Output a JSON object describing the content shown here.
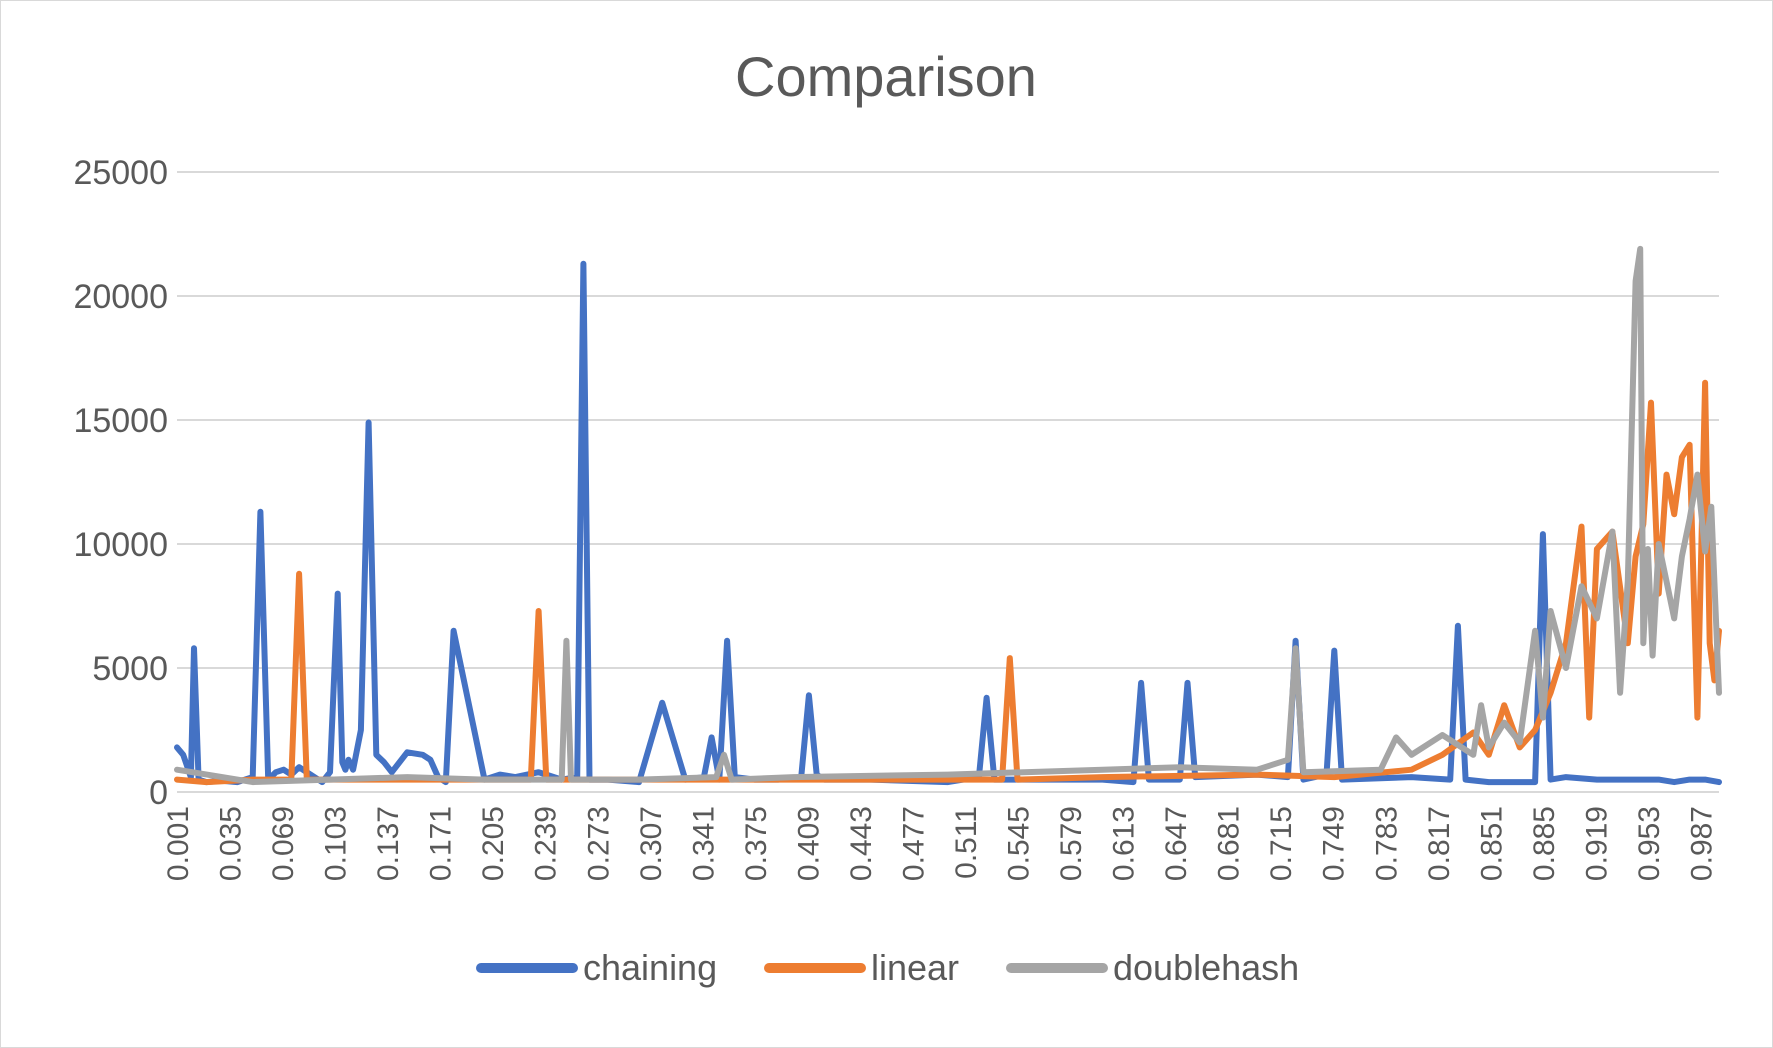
{
  "chart_data": {
    "type": "line",
    "title": "Comparison",
    "xlabel": "",
    "ylabel": "",
    "ylim": [
      0,
      25000
    ],
    "yticks": [
      0,
      5000,
      10000,
      15000,
      20000,
      25000
    ],
    "xlim": [
      0.001,
      0.999
    ],
    "xticks": [
      "0.001",
      "0.035",
      "0.069",
      "0.103",
      "0.137",
      "0.171",
      "0.205",
      "0.239",
      "0.273",
      "0.307",
      "0.341",
      "0.375",
      "0.409",
      "0.443",
      "0.477",
      "0.511",
      "0.545",
      "0.579",
      "0.613",
      "0.647",
      "0.681",
      "0.715",
      "0.749",
      "0.783",
      "0.817",
      "0.851",
      "0.885",
      "0.919",
      "0.953",
      "0.987"
    ],
    "grid": true,
    "legend_position": "bottom",
    "series": [
      {
        "name": "chaining",
        "color": "#4472c4",
        "x": [
          0.001,
          0.005,
          0.01,
          0.012,
          0.015,
          0.02,
          0.03,
          0.04,
          0.05,
          0.055,
          0.06,
          0.065,
          0.07,
          0.075,
          0.08,
          0.085,
          0.09,
          0.095,
          0.1,
          0.105,
          0.108,
          0.11,
          0.112,
          0.115,
          0.12,
          0.125,
          0.13,
          0.135,
          0.14,
          0.15,
          0.16,
          0.165,
          0.17,
          0.175,
          0.18,
          0.2,
          0.21,
          0.22,
          0.235,
          0.24,
          0.25,
          0.26,
          0.264,
          0.268,
          0.28,
          0.3,
          0.315,
          0.33,
          0.342,
          0.347,
          0.352,
          0.357,
          0.362,
          0.375,
          0.39,
          0.405,
          0.41,
          0.415,
          0.42,
          0.45,
          0.5,
          0.52,
          0.525,
          0.53,
          0.55,
          0.6,
          0.62,
          0.625,
          0.63,
          0.65,
          0.655,
          0.66,
          0.7,
          0.72,
          0.725,
          0.73,
          0.745,
          0.75,
          0.755,
          0.8,
          0.825,
          0.83,
          0.835,
          0.85,
          0.88,
          0.885,
          0.89,
          0.9,
          0.92,
          0.94,
          0.96,
          0.97,
          0.98,
          0.99,
          0.999
        ],
        "y": [
          1800,
          1500,
          600,
          5800,
          500,
          400,
          450,
          400,
          600,
          11300,
          500,
          800,
          900,
          700,
          1000,
          800,
          600,
          400,
          800,
          8000,
          1200,
          900,
          1300,
          900,
          2500,
          14900,
          1500,
          1200,
          800,
          1600,
          1500,
          1300,
          600,
          400,
          6500,
          500,
          700,
          600,
          800,
          700,
          500,
          600,
          21300,
          500,
          500,
          400,
          3600,
          500,
          600,
          2200,
          500,
          6100,
          600,
          500,
          500,
          600,
          3900,
          700,
          500,
          500,
          400,
          600,
          3800,
          500,
          500,
          500,
          400,
          4400,
          500,
          500,
          4400,
          600,
          700,
          600,
          6100,
          500,
          700,
          5700,
          500,
          600,
          500,
          6700,
          500,
          400,
          400,
          10400,
          500,
          600,
          500,
          500,
          500,
          400,
          500,
          500,
          400
        ]
      },
      {
        "name": "linear",
        "color": "#ed7d31",
        "x": [
          0.001,
          0.02,
          0.05,
          0.075,
          0.08,
          0.085,
          0.1,
          0.2,
          0.23,
          0.235,
          0.24,
          0.3,
          0.4,
          0.5,
          0.535,
          0.54,
          0.545,
          0.6,
          0.7,
          0.75,
          0.8,
          0.82,
          0.84,
          0.85,
          0.86,
          0.87,
          0.88,
          0.89,
          0.9,
          0.91,
          0.915,
          0.92,
          0.93,
          0.94,
          0.945,
          0.95,
          0.955,
          0.96,
          0.965,
          0.97,
          0.975,
          0.98,
          0.985,
          0.99,
          0.993,
          0.996,
          0.999
        ],
        "y": [
          500,
          400,
          500,
          500,
          8800,
          500,
          500,
          500,
          500,
          7300,
          500,
          500,
          500,
          500,
          500,
          5400,
          500,
          600,
          700,
          600,
          900,
          1500,
          2400,
          1500,
          3500,
          1800,
          2500,
          4000,
          6000,
          10700,
          3000,
          9800,
          10500,
          6000,
          9500,
          10800,
          15700,
          8000,
          12800,
          11200,
          13500,
          14000,
          3000,
          16500,
          6000,
          4500,
          6500
        ]
      },
      {
        "name": "doublehash",
        "color": "#a5a5a5",
        "x": [
          0.001,
          0.05,
          0.1,
          0.15,
          0.2,
          0.25,
          0.253,
          0.256,
          0.3,
          0.35,
          0.355,
          0.36,
          0.4,
          0.5,
          0.6,
          0.65,
          0.7,
          0.72,
          0.725,
          0.73,
          0.78,
          0.79,
          0.8,
          0.82,
          0.84,
          0.845,
          0.85,
          0.86,
          0.87,
          0.88,
          0.885,
          0.89,
          0.9,
          0.91,
          0.92,
          0.93,
          0.935,
          0.94,
          0.945,
          0.948,
          0.95,
          0.953,
          0.956,
          0.96,
          0.965,
          0.97,
          0.975,
          0.98,
          0.985,
          0.99,
          0.994,
          0.999
        ],
        "y": [
          900,
          400,
          500,
          600,
          500,
          500,
          6100,
          500,
          500,
          600,
          1500,
          500,
          600,
          700,
          900,
          1000,
          900,
          1300,
          5800,
          800,
          900,
          2200,
          1500,
          2300,
          1500,
          3500,
          1800,
          2800,
          2000,
          6500,
          3000,
          7300,
          5000,
          8300,
          7000,
          10500,
          4000,
          8500,
          20600,
          21900,
          6000,
          9800,
          5500,
          10000,
          8500,
          7000,
          9500,
          11000,
          12800,
          9700,
          11500,
          4000
        ]
      }
    ]
  }
}
